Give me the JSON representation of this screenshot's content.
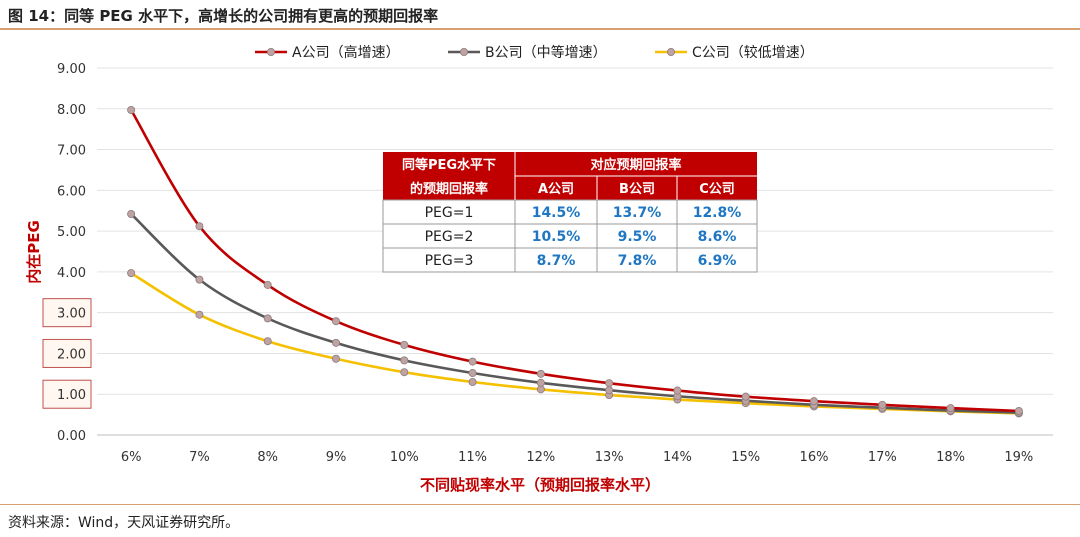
{
  "figure_title": "图 14：同等 PEG 水平下，高增长的公司拥有更高的预期回报率",
  "source_note": "资料来源：Wind，天风证券研究所。",
  "chart_data": {
    "type": "line",
    "xlabel": "不同贴现率水平（预期回报率水平）",
    "ylabel": "内在PEG",
    "ylim": [
      0,
      9
    ],
    "ytick_labels": [
      "0.00",
      "1.00",
      "2.00",
      "3.00",
      "4.00",
      "5.00",
      "6.00",
      "7.00",
      "8.00",
      "9.00"
    ],
    "boxed_ytick_labels": [
      "1.00",
      "2.00",
      "3.00"
    ],
    "categories": [
      "6%",
      "7%",
      "8%",
      "9%",
      "10%",
      "11%",
      "12%",
      "13%",
      "14%",
      "15%",
      "16%",
      "17%",
      "18%",
      "19%"
    ],
    "legend_position": "top",
    "grid": "horizontal",
    "series": [
      {
        "name": "A公司（高增速）",
        "color": "#c00000",
        "values": [
          7.97,
          5.12,
          3.68,
          2.79,
          2.21,
          1.8,
          1.5,
          1.27,
          1.09,
          0.94,
          0.83,
          0.74,
          0.66,
          0.59
        ]
      },
      {
        "name": "B公司（中等增速）",
        "color": "#595959",
        "values": [
          5.42,
          3.81,
          2.86,
          2.26,
          1.83,
          1.52,
          1.28,
          1.1,
          0.95,
          0.84,
          0.74,
          0.67,
          0.6,
          0.55
        ]
      },
      {
        "name": "C公司（较低增速）",
        "color": "#f5c000",
        "values": [
          3.97,
          2.95,
          2.3,
          1.87,
          1.54,
          1.3,
          1.12,
          0.98,
          0.87,
          0.78,
          0.7,
          0.64,
          0.58,
          0.53
        ]
      }
    ],
    "table": {
      "header_left_line1": "同等PEG水平下",
      "header_left_line2": "的预期回报率",
      "header_group": "对应预期回报率",
      "columns": [
        "A公司",
        "B公司",
        "C公司"
      ],
      "rows": [
        {
          "label": "PEG=1",
          "values": [
            "14.5%",
            "13.7%",
            "12.8%"
          ]
        },
        {
          "label": "PEG=2",
          "values": [
            "10.5%",
            "9.5%",
            "8.6%"
          ]
        },
        {
          "label": "PEG=3",
          "values": [
            "8.7%",
            "7.8%",
            "6.9%"
          ]
        }
      ]
    }
  }
}
